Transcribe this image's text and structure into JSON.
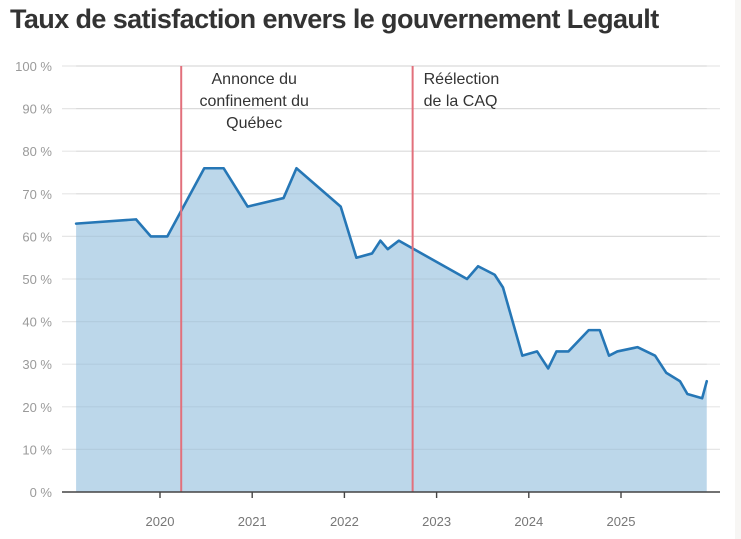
{
  "chart_data": {
    "type": "area",
    "title": "Taux de satisfaction envers le gouvernement Legault",
    "xlabel": "",
    "ylabel": "",
    "ylim": [
      0,
      100
    ],
    "xlim": [
      2019.0,
      2026.0
    ],
    "grid": true,
    "y_ticks": [
      {
        "value": 0,
        "label": "0 %"
      },
      {
        "value": 10,
        "label": "10 %"
      },
      {
        "value": 20,
        "label": "20 %"
      },
      {
        "value": 30,
        "label": "30 %"
      },
      {
        "value": 40,
        "label": "40 %"
      },
      {
        "value": 50,
        "label": "50 %"
      },
      {
        "value": 60,
        "label": "60 %"
      },
      {
        "value": 70,
        "label": "70 %"
      },
      {
        "value": 80,
        "label": "80 %"
      },
      {
        "value": 90,
        "label": "90 %"
      },
      {
        "value": 100,
        "label": "100 %"
      }
    ],
    "x_ticks": [
      {
        "value": 2020,
        "label": "2020"
      },
      {
        "value": 2021,
        "label": "2021"
      },
      {
        "value": 2022,
        "label": "2022"
      },
      {
        "value": 2023,
        "label": "2023"
      },
      {
        "value": 2024,
        "label": "2024"
      },
      {
        "value": 2025,
        "label": "2025"
      }
    ],
    "series": [
      {
        "name": "Taux de satisfaction",
        "color": "#2677b6",
        "fill": "#bcd7ea",
        "x": [
          2019.09,
          2019.74,
          2019.9,
          2020.08,
          2020.48,
          2020.69,
          2020.95,
          2021.34,
          2021.48,
          2021.96,
          2022.13,
          2022.3,
          2022.39,
          2022.47,
          2022.59,
          2023.33,
          2023.45,
          2023.63,
          2023.72,
          2023.93,
          2024.09,
          2024.21,
          2024.3,
          2024.43,
          2024.65,
          2024.77,
          2024.87,
          2024.96,
          2025.18,
          2025.37,
          2025.49,
          2025.64,
          2025.72,
          2025.88,
          2025.93
        ],
        "values": [
          63,
          64,
          60,
          60,
          76,
          76,
          67,
          69,
          76,
          67,
          55,
          56,
          59,
          57,
          59,
          50,
          53,
          51,
          48,
          32,
          33,
          29,
          33,
          33,
          38,
          38,
          32,
          33,
          34,
          32,
          28,
          26,
          23,
          22,
          26
        ]
      }
    ],
    "annotations": [
      {
        "x": 2020.23,
        "color": "#e2707c",
        "lines": [
          "Annonce du",
          "confinement du",
          "Québec"
        ],
        "align": "center"
      },
      {
        "x": 2022.74,
        "color": "#e2707c",
        "lines": [
          "Réélection",
          "de la CAQ"
        ],
        "align": "start"
      }
    ]
  }
}
